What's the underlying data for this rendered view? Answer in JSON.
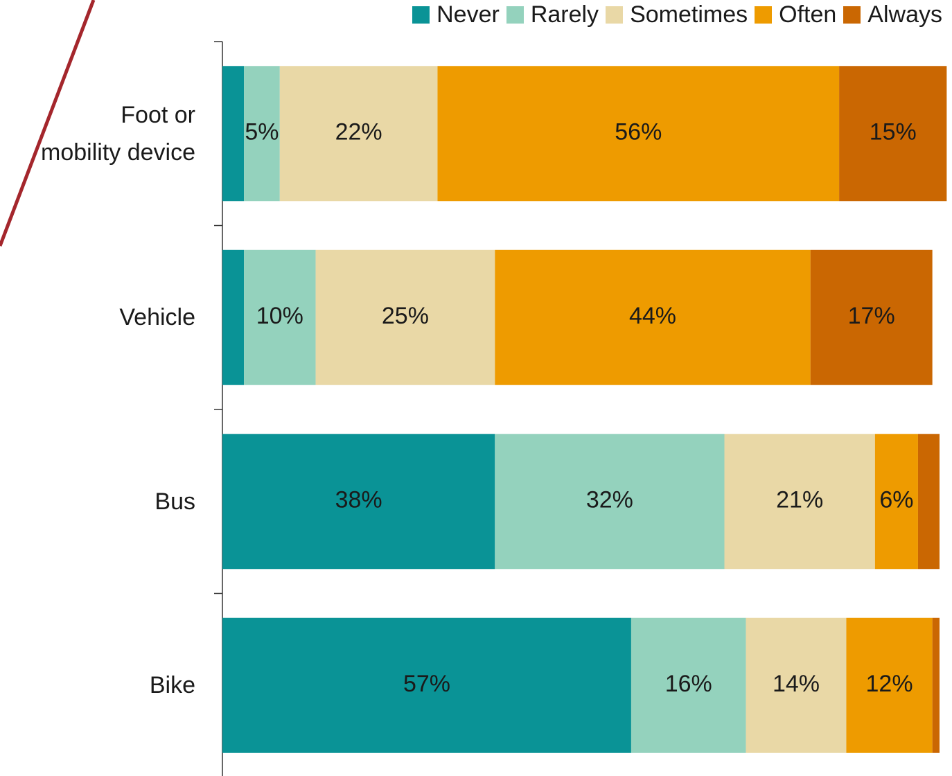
{
  "chart_data": {
    "type": "stacked-bar-horizontal",
    "categories": [
      "Foot or\nmobility device",
      "Vehicle",
      "Bus",
      "Bike"
    ],
    "series": [
      {
        "name": "Never",
        "color": "#0a9396",
        "values": [
          3,
          3,
          38,
          57
        ],
        "value_labels": [
          null,
          null,
          "38%",
          "57%"
        ]
      },
      {
        "name": "Rarely",
        "color": "#94d2bd",
        "values": [
          5,
          10,
          32,
          16
        ],
        "value_labels": [
          "5%",
          "10%",
          "32%",
          "16%"
        ]
      },
      {
        "name": "Sometimes",
        "color": "#e9d8a6",
        "values": [
          22,
          25,
          21,
          14
        ],
        "value_labels": [
          "22%",
          "25%",
          "21%",
          "14%"
        ]
      },
      {
        "name": "Often",
        "color": "#ee9b00",
        "values": [
          56,
          44,
          6,
          12
        ],
        "value_labels": [
          "56%",
          "44%",
          "6%",
          "12%"
        ]
      },
      {
        "name": "Always",
        "color": "#ca6702",
        "values": [
          15,
          17,
          3,
          1
        ],
        "value_labels": [
          "15%",
          "17%",
          null,
          null
        ]
      }
    ],
    "xlim": [
      0,
      100
    ],
    "legend": "top-right"
  }
}
